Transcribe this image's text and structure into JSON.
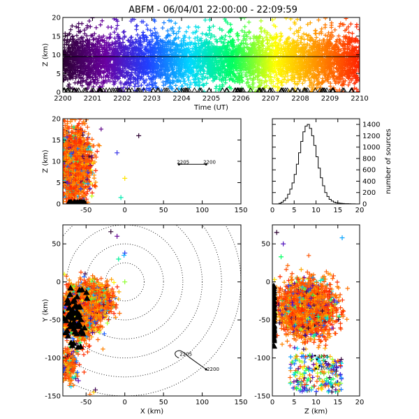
{
  "title": "ABFM - 06/04/01 22:00:00 - 22:09:59",
  "colors": {
    "axis": "#000000",
    "rainbow": [
      "#2a0030",
      "#6a00a0",
      "#2040ff",
      "#00d8ff",
      "#00ff60",
      "#ffff00",
      "#ff9000",
      "#ff2000"
    ]
  },
  "chart_data": [
    {
      "id": "time_height",
      "type": "scatter",
      "xlabel": "Time (UT)",
      "ylabel": "Z (km)",
      "xlim": [
        2200,
        2210
      ],
      "ylim": [
        0,
        20
      ],
      "xticks": [
        "2200",
        "2201",
        "2202",
        "2203",
        "2204",
        "2205",
        "2206",
        "2207",
        "2208",
        "2209",
        "2210"
      ],
      "yticks": [
        "0",
        "5",
        "10",
        "15",
        "20"
      ],
      "reference_line_z": 9.5,
      "source_band_z": [
        2,
        15
      ],
      "color_by": "time",
      "ground_markers": "triangle"
    },
    {
      "id": "x_z_plan",
      "type": "scatter",
      "xlabel": "",
      "ylabel": "Z (km)",
      "xlim": [
        -80,
        150
      ],
      "ylim": [
        0,
        20
      ],
      "xticks": [
        "-50",
        "0",
        "50",
        "100",
        "150"
      ],
      "yticks": [
        "0",
        "5",
        "10",
        "15",
        "20"
      ],
      "track": {
        "labels": [
          "2205",
          "2200"
        ],
        "points": [
          [
            70,
            9.3
          ],
          [
            105,
            9.3
          ]
        ]
      },
      "outliers": [
        [
          18,
          16
        ],
        [
          -10,
          12
        ],
        [
          -5,
          1.5
        ],
        [
          0,
          6
        ]
      ]
    },
    {
      "id": "histogram",
      "type": "bar",
      "xlabel": "",
      "ylabel": "number of sources",
      "xlim": [
        0,
        20
      ],
      "ylim": [
        0,
        1500
      ],
      "xticks": [
        "0",
        "5",
        "10",
        "15",
        "20"
      ],
      "yticks": [
        "0",
        "200",
        "400",
        "600",
        "800",
        "1000",
        "1200",
        "1400"
      ],
      "bin_edges": [
        0,
        0.5,
        1,
        1.5,
        2,
        2.5,
        3,
        3.5,
        4,
        4.5,
        5,
        5.5,
        6,
        6.5,
        7,
        7.5,
        8,
        8.5,
        9,
        9.5,
        10,
        10.5,
        11,
        11.5,
        12,
        12.5,
        13,
        13.5,
        14,
        14.5,
        15,
        15.5,
        16,
        16.5,
        17,
        17.5,
        18,
        18.5,
        19,
        19.5,
        20
      ],
      "values": [
        0,
        0,
        0,
        10,
        30,
        60,
        100,
        170,
        260,
        370,
        520,
        700,
        900,
        1100,
        1270,
        1370,
        1400,
        1330,
        1200,
        1030,
        830,
        630,
        460,
        320,
        200,
        130,
        80,
        50,
        30,
        20,
        15,
        10,
        8,
        5,
        4,
        3,
        2,
        1,
        0,
        0
      ]
    },
    {
      "id": "x_y_plan",
      "type": "scatter",
      "xlabel": "X (km)",
      "ylabel": "Y (km)",
      "xlim": [
        -80,
        150
      ],
      "ylim": [
        -150,
        75
      ],
      "xticks": [
        "-50",
        "0",
        "50",
        "100",
        "150"
      ],
      "yticks": [
        "-150",
        "-100",
        "-50",
        "0",
        "50"
      ],
      "range_rings_km": [
        25,
        50,
        75,
        100,
        125,
        150
      ],
      "track": {
        "labels": [
          "2205",
          "2200"
        ],
        "points": [
          [
            70,
            -100
          ],
          [
            105,
            -115
          ]
        ]
      },
      "clusters": [
        {
          "cx": -60,
          "cy": -40,
          "sx": 12,
          "sy": 18
        },
        {
          "cx": -35,
          "cy": -25,
          "sx": 10,
          "sy": 12
        },
        {
          "cx": -72,
          "cy": -110,
          "sx": 5,
          "sy": 10
        }
      ]
    },
    {
      "id": "z_y_plan",
      "type": "scatter",
      "xlabel": "Z (km)",
      "ylabel": "",
      "xlim": [
        0,
        20
      ],
      "ylim": [
        -150,
        75
      ],
      "xticks": [
        "0",
        "5",
        "10",
        "15",
        "20"
      ],
      "yticks": [
        "-150",
        "-100",
        "-50",
        "0",
        "50"
      ],
      "track_labels": [
        "2205",
        "2200"
      ],
      "clusters": [
        {
          "cx": 8,
          "cy": -35,
          "sx": 3,
          "sy": 18
        }
      ]
    }
  ]
}
